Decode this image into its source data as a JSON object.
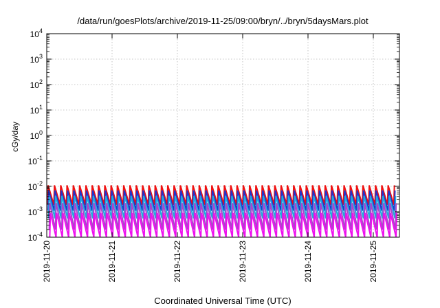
{
  "chart_data": {
    "type": "line",
    "title": "/data/run/goesPlots/archive/2019-11-25/09:00/bryn/../bryn/5daysMars.plot",
    "xlabel": "Coordinated Universal Time (UTC)",
    "ylabel": "cGy/day",
    "x_range_days": [
      0,
      5.4
    ],
    "x_ticks": [
      {
        "day": 0,
        "label": "2019-11-20"
      },
      {
        "day": 1,
        "label": "2019-11-21"
      },
      {
        "day": 2,
        "label": "2019-11-22"
      },
      {
        "day": 3,
        "label": "2019-11-23"
      },
      {
        "day": 4,
        "label": "2019-11-24"
      },
      {
        "day": 5,
        "label": "2019-11-25"
      }
    ],
    "y_scale": "log",
    "y_range": [
      0.0001,
      10000
    ],
    "y_ticks": [
      {
        "exp": "4"
      },
      {
        "exp": "3"
      },
      {
        "exp": "2"
      },
      {
        "exp": "1"
      },
      {
        "exp": "0"
      },
      {
        "exp": "-1"
      },
      {
        "exp": "-2"
      },
      {
        "exp": "-3"
      },
      {
        "exp": "-4"
      }
    ],
    "grid": true,
    "sawtooth_period_days": 0.0964,
    "series": [
      {
        "color": "#ee1111",
        "high": 0.011,
        "low": 0.0019
      },
      {
        "color": "#2233cc",
        "high": 0.0068,
        "low": 0.0011
      },
      {
        "color": "#22aadd",
        "high": 0.0042,
        "low": 0.00055
      },
      {
        "color": "#aa44cc",
        "high": 0.0022,
        "low": 0.0002
      },
      {
        "color": "#ee11ee",
        "high": 0.0009,
        "low": 0.0001
      }
    ]
  }
}
